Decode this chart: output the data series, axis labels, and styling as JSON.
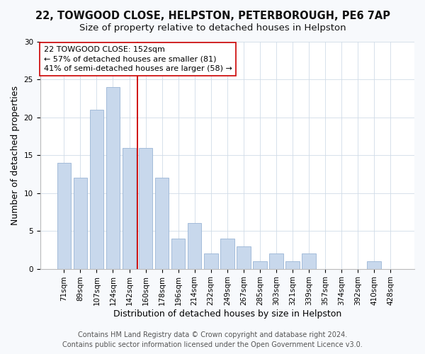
{
  "title": "22, TOWGOOD CLOSE, HELPSTON, PETERBOROUGH, PE6 7AP",
  "subtitle": "Size of property relative to detached houses in Helpston",
  "xlabel": "Distribution of detached houses by size in Helpston",
  "ylabel": "Number of detached properties",
  "bar_labels": [
    "71sqm",
    "89sqm",
    "107sqm",
    "124sqm",
    "142sqm",
    "160sqm",
    "178sqm",
    "196sqm",
    "214sqm",
    "232sqm",
    "249sqm",
    "267sqm",
    "285sqm",
    "303sqm",
    "321sqm",
    "339sqm",
    "357sqm",
    "374sqm",
    "392sqm",
    "410sqm",
    "428sqm"
  ],
  "bar_values": [
    14,
    12,
    21,
    24,
    16,
    16,
    12,
    4,
    6,
    2,
    4,
    3,
    1,
    2,
    1,
    2,
    0,
    0,
    0,
    1,
    0
  ],
  "bar_color": "#c8d8ec",
  "bar_edge_color": "#9ab5d5",
  "vline_x_index": 4.5,
  "vline_color": "#cc0000",
  "annotation_text": "22 TOWGOOD CLOSE: 152sqm\n← 57% of detached houses are smaller (81)\n41% of semi-detached houses are larger (58) →",
  "annotation_box_facecolor": "#ffffff",
  "annotation_box_edgecolor": "#cc0000",
  "ylim": [
    0,
    30
  ],
  "yticks": [
    0,
    5,
    10,
    15,
    20,
    25,
    30
  ],
  "footer_line1": "Contains HM Land Registry data © Crown copyright and database right 2024.",
  "footer_line2": "Contains public sector information licensed under the Open Government Licence v3.0.",
  "bg_color": "#f7f9fc",
  "plot_bg_color": "#ffffff",
  "title_fontsize": 10.5,
  "axis_label_fontsize": 9,
  "tick_fontsize": 7.5,
  "annotation_fontsize": 8,
  "footer_fontsize": 7
}
